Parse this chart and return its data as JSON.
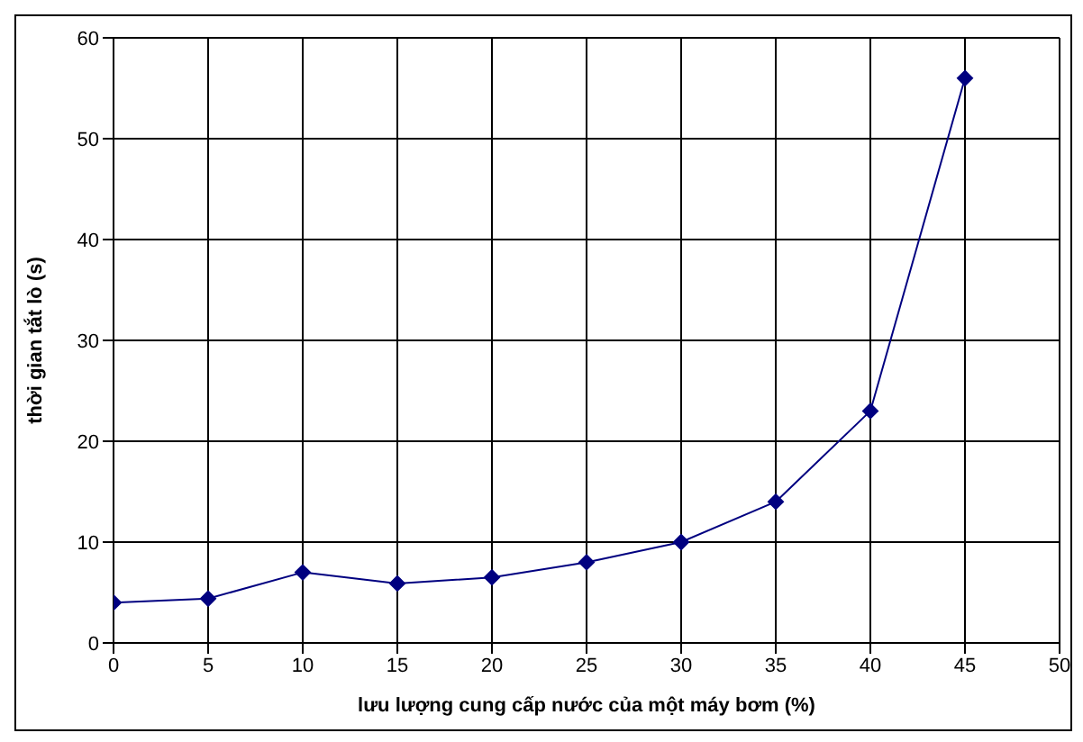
{
  "chart_data": {
    "type": "line",
    "xlabel": "lưu lượng cung cấp nước của một máy bơm (%)",
    "ylabel": "thời gian tắt lò (s)",
    "x": [
      0,
      5,
      10,
      15,
      20,
      25,
      30,
      35,
      40,
      45
    ],
    "series": [
      {
        "color": "#000080",
        "values": [
          4,
          4.4,
          7,
          5.9,
          6.5,
          8,
          10,
          14,
          23,
          56
        ]
      }
    ],
    "xlim": [
      0,
      50
    ],
    "xticks": [
      0,
      5,
      10,
      15,
      20,
      25,
      30,
      35,
      40,
      45,
      50
    ],
    "ylim": [
      0,
      60
    ],
    "yticks": [
      0,
      10,
      20,
      30,
      40,
      50,
      60
    ],
    "grid": true,
    "marker": "diamond",
    "line_style": "solid"
  }
}
